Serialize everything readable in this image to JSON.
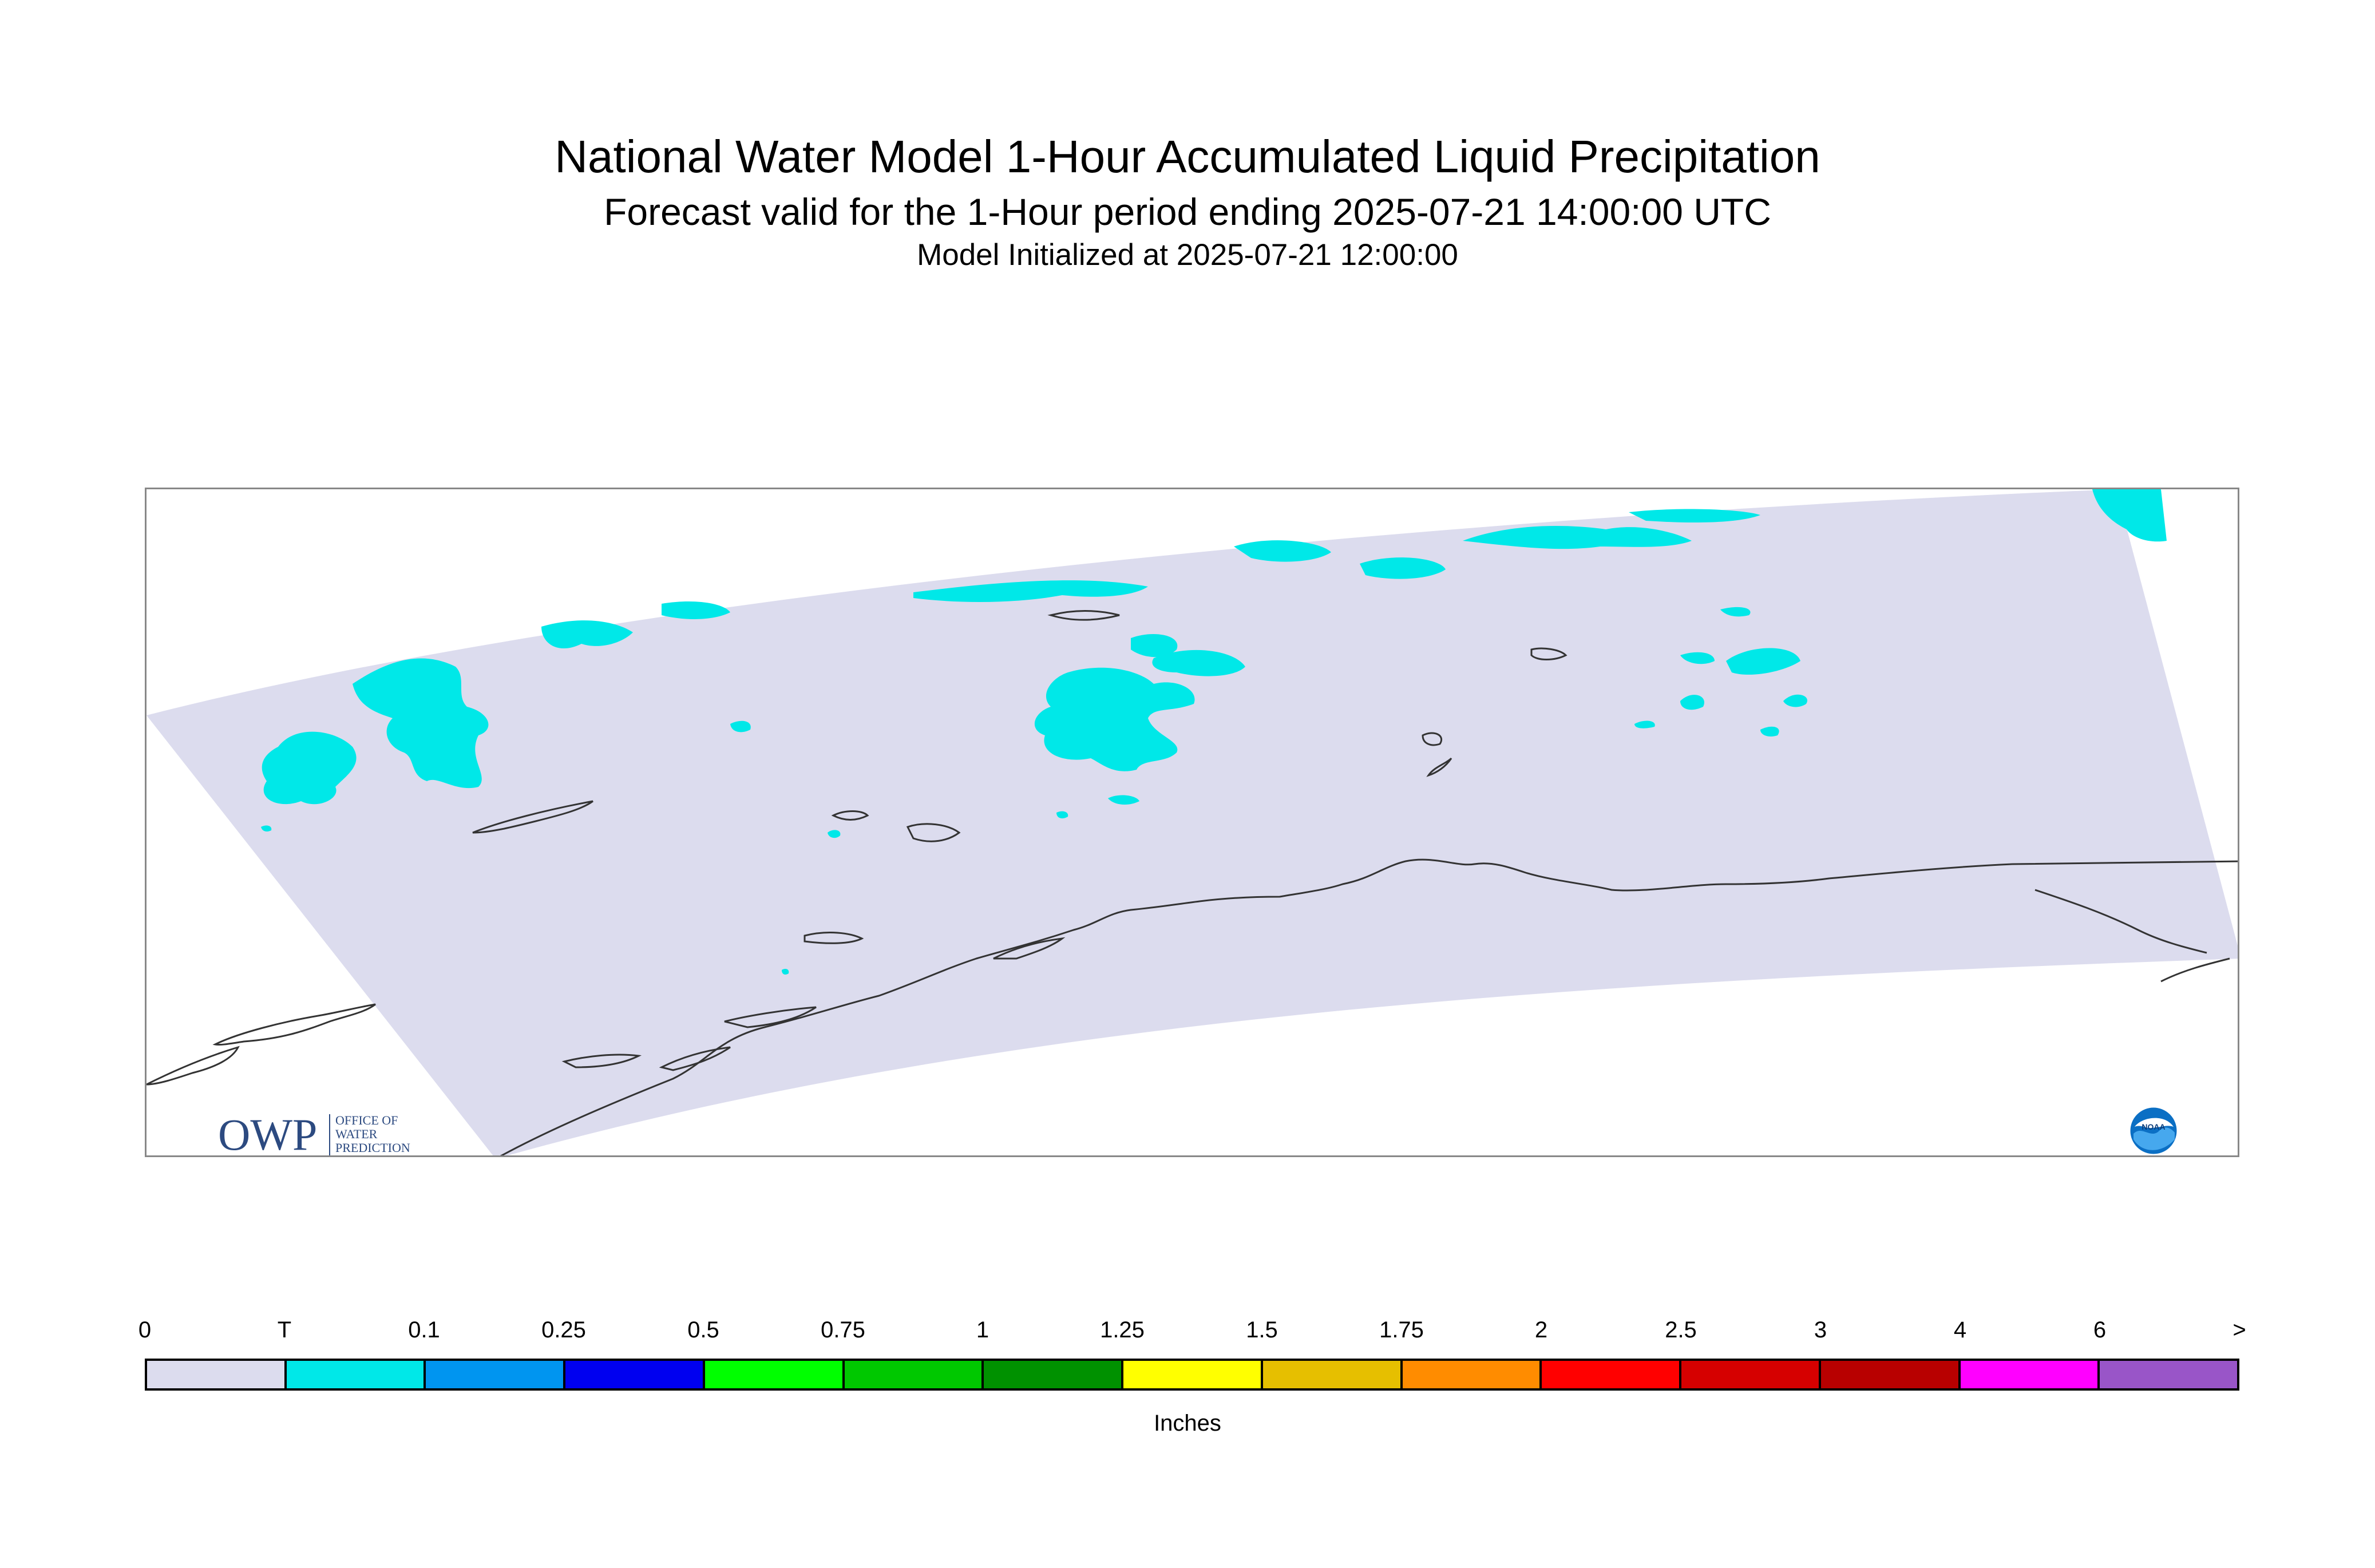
{
  "title": "National Water Model 1-Hour Accumulated Liquid Precipitation",
  "subtitle": "Forecast valid for the 1-Hour period ending 2025-07-21 14:00:00 UTC",
  "subtitle2": "Model Initialized at 2025-07-21 12:00:00",
  "map": {
    "region": "Alaska",
    "background_color": "#dcdcee",
    "precip_color": "#00e8e8",
    "coastline_color": "#333333"
  },
  "logos": {
    "owp": {
      "mark": "OWP",
      "text_lines": [
        "OFFICE OF",
        "WATER",
        "PREDICTION"
      ]
    },
    "noaa": {
      "text": "NOAA"
    }
  },
  "legend": {
    "labels": [
      "0",
      "T",
      "0.1",
      "0.25",
      "0.5",
      "0.75",
      "1",
      "1.25",
      "1.5",
      "1.75",
      "2",
      "2.5",
      "3",
      "4",
      "6",
      ">"
    ],
    "colors": [
      "#dcdcee",
      "#00e8e8",
      "#0095f0",
      "#0000f0",
      "#00ff00",
      "#00c800",
      "#009100",
      "#ffff00",
      "#e6bf00",
      "#ff8c00",
      "#ff0000",
      "#d60000",
      "#b80000",
      "#ff00ff",
      "#9955c8"
    ],
    "units": "Inches"
  }
}
